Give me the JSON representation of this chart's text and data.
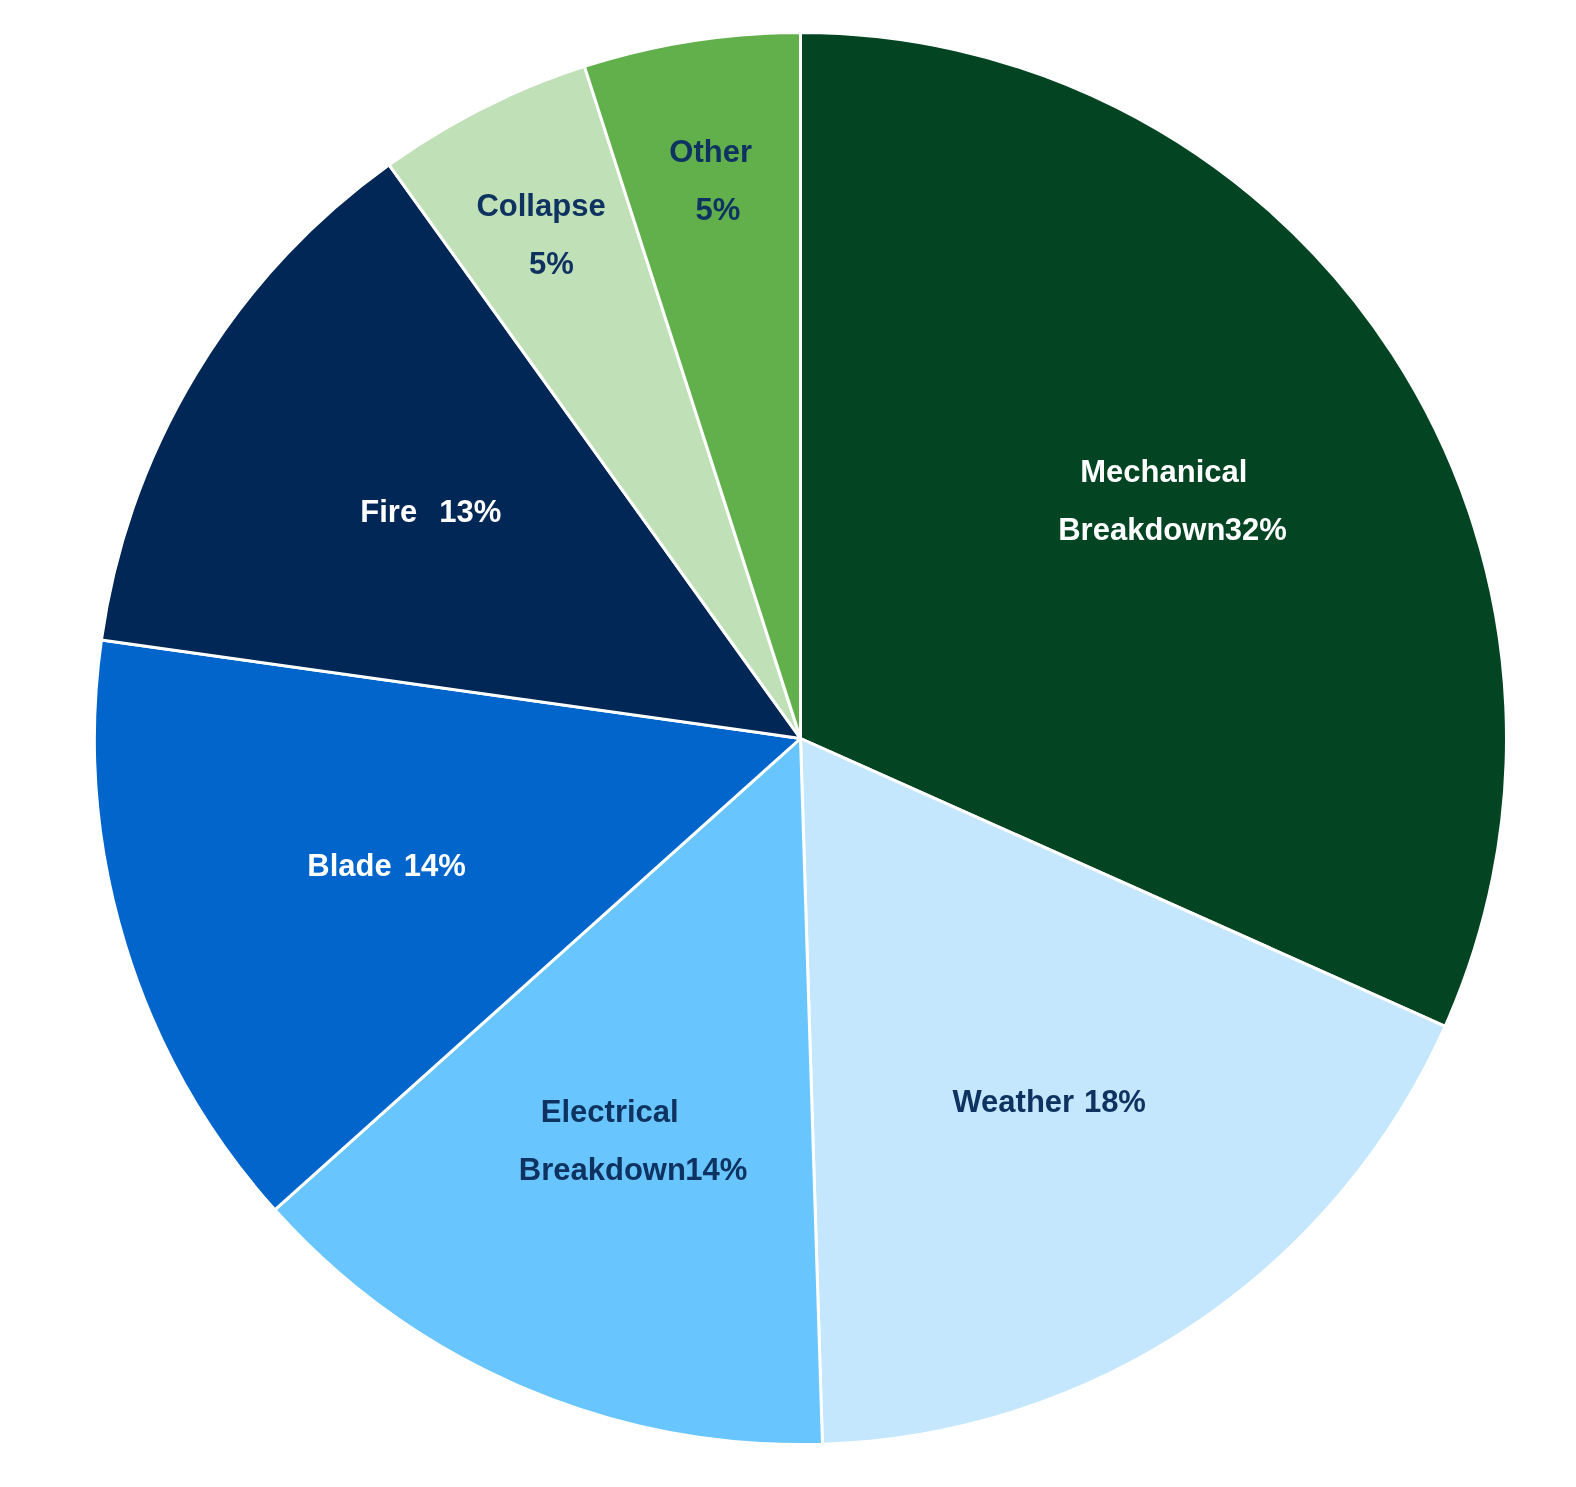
{
  "chart_data": {
    "type": "pie",
    "categories": [
      "Mechanical Breakdown",
      "Weather",
      "Electrical Breakdown",
      "Blade",
      "Fire",
      "Collapse",
      "Other"
    ],
    "values": [
      32,
      18,
      14,
      14,
      13,
      5,
      5
    ],
    "colors": [
      "#034522",
      "#c4e7fd",
      "#69c5fd",
      "#0265cb",
      "#002755",
      "#c0e0b8",
      "#62b04b"
    ],
    "value_labels": [
      "32%",
      "18%",
      "14%",
      "14%",
      "13%",
      "5%",
      "5%"
    ]
  }
}
